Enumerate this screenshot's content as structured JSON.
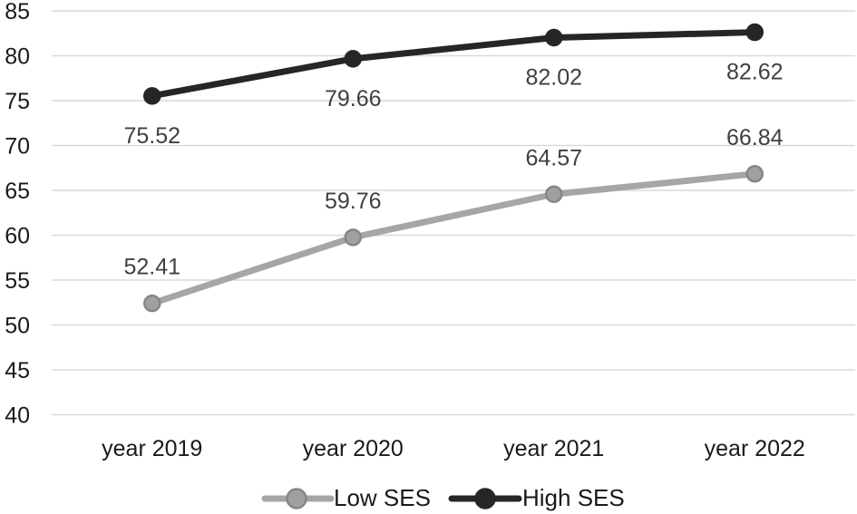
{
  "chart_data": {
    "type": "line",
    "categories": [
      "year 2019",
      "year 2020",
      "year 2021",
      "year 2022"
    ],
    "series": [
      {
        "name": "Low SES",
        "values": [
          52.41,
          59.76,
          64.57,
          66.84
        ],
        "color": "#a6a6a6",
        "marker_fill": "#a0a0a0",
        "marker_stroke": "#868686",
        "label_position": "above"
      },
      {
        "name": "High SES",
        "values": [
          75.52,
          79.66,
          82.02,
          82.62
        ],
        "color": "#262626",
        "marker_fill": "#262626",
        "marker_stroke": "#262626",
        "label_position": "below"
      }
    ],
    "data_labels": [
      [
        "52.41",
        "59.76",
        "64.57",
        "66.84"
      ],
      [
        "75.52",
        "79.66",
        "82.02",
        "82.62"
      ]
    ],
    "ylim": [
      40,
      85
    ],
    "yticks": [
      85,
      80,
      75,
      70,
      65,
      60,
      55,
      50,
      45,
      40
    ],
    "grid": "horizontal",
    "legend_position": "bottom",
    "legend_labels": [
      "Low SES",
      "High SES"
    ],
    "colors": {
      "gridline": "#d9d9d9",
      "data_label": "#404040",
      "axis_label": "#1a1a1a",
      "background": "#ffffff"
    }
  }
}
